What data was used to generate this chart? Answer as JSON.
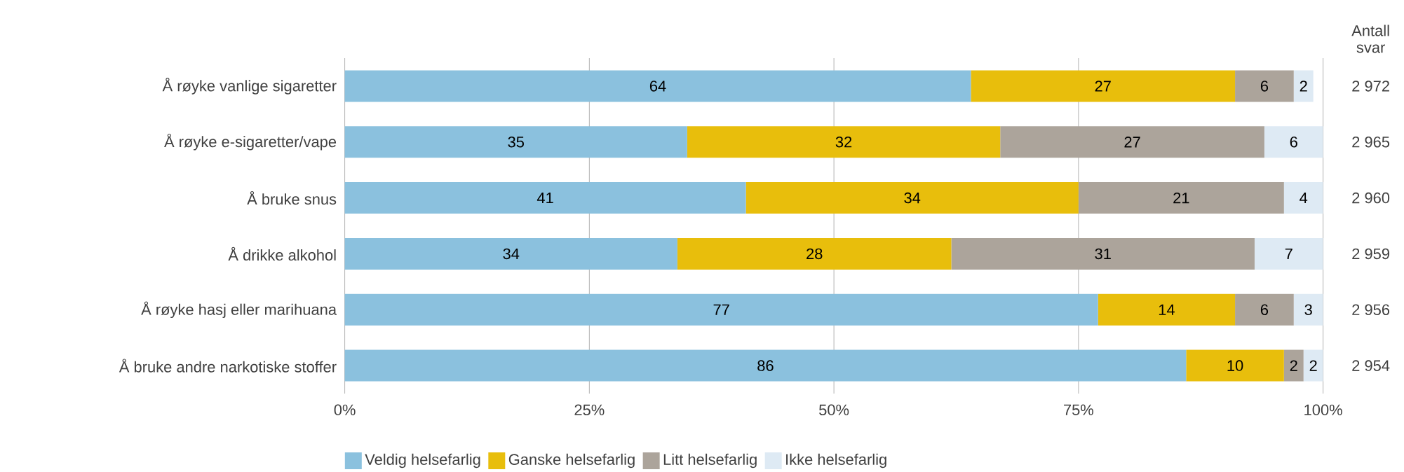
{
  "chart_data": {
    "type": "bar",
    "orientation": "horizontal",
    "stacked": true,
    "data_labels": true,
    "grid": "x",
    "legend": "bottom",
    "categories": [
      "Å røyke vanlige sigaretter",
      "Å røyke e-sigaretter/vape",
      "Å bruke snus",
      "Å drikke alkohol",
      "Å røyke hasj eller marihuana",
      "Å bruke andre narkotiske stoffer"
    ],
    "series": [
      {
        "name": "Veldig helsefarlig",
        "color": "#8bc1de",
        "values": [
          64,
          35,
          41,
          34,
          77,
          86
        ]
      },
      {
        "name": "Ganske helsefarlig",
        "color": "#e8be0c",
        "values": [
          27,
          32,
          34,
          28,
          14,
          10
        ]
      },
      {
        "name": "Litt helsefarlig",
        "color": "#aca49b",
        "values": [
          6,
          27,
          21,
          31,
          6,
          2
        ]
      },
      {
        "name": "Ikke helsefarlig",
        "color": "#deeaf4",
        "values": [
          2,
          6,
          4,
          7,
          3,
          2
        ]
      }
    ],
    "xlim": [
      0,
      100
    ],
    "xticks": [
      {
        "value": 0,
        "label": "0%"
      },
      {
        "value": 25,
        "label": "25%"
      },
      {
        "value": 50,
        "label": "50%"
      },
      {
        "value": 75,
        "label": "75%"
      },
      {
        "value": 100,
        "label": "100%"
      }
    ],
    "annotations": [
      "Antall svar",
      "2 972",
      "2 965",
      "2 960",
      "2 959",
      "2 956",
      "2 954"
    ]
  }
}
